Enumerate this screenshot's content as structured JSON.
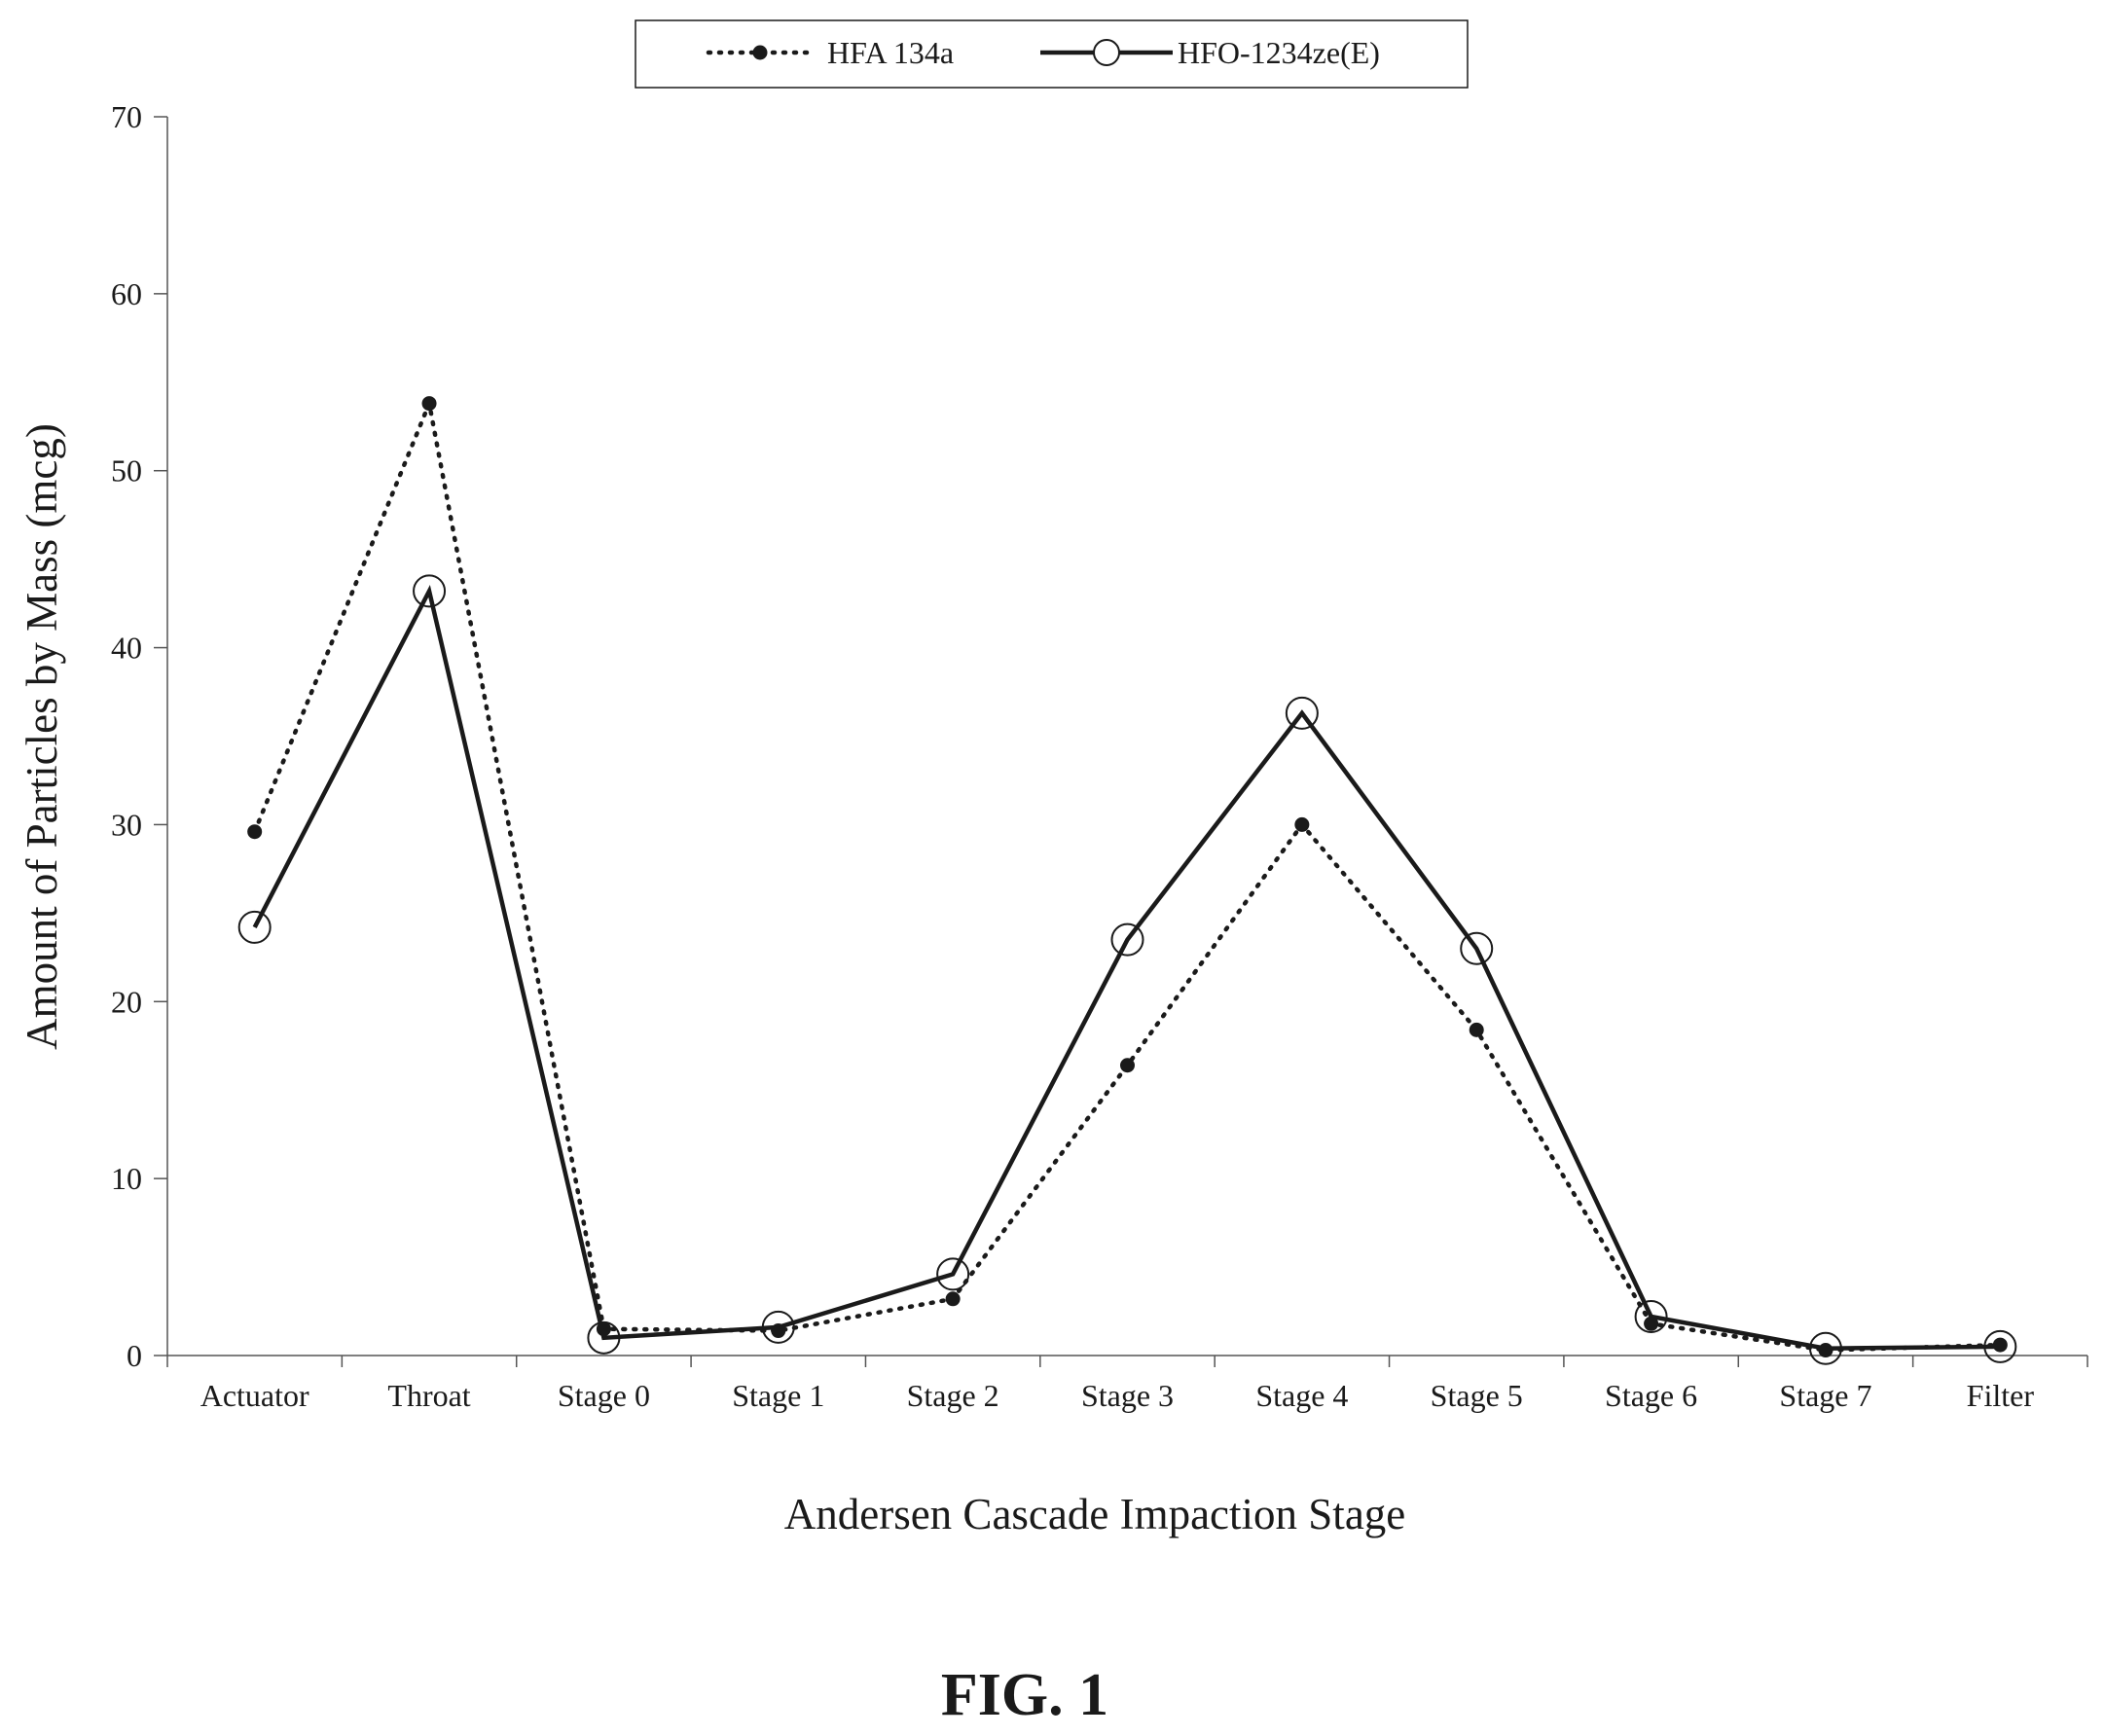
{
  "figure_caption": "FIG. 1",
  "chart_data": {
    "type": "line",
    "title": "",
    "xlabel": "Andersen Cascade Impaction Stage",
    "ylabel": "Amount of Particles by Mass (mcg)",
    "ylim": [
      0,
      70
    ],
    "yticks": [
      0,
      10,
      20,
      30,
      40,
      50,
      60,
      70
    ],
    "ytick_labels": [
      "0",
      "10",
      "20",
      "30",
      "40",
      "50",
      "60",
      "70"
    ],
    "grid": false,
    "legend_position": "top-center",
    "categories": [
      "Actuator",
      "Throat",
      "Stage 0",
      "Stage 1",
      "Stage 2",
      "Stage 3",
      "Stage 4",
      "Stage 5",
      "Stage 6",
      "Stage 7",
      "Filter"
    ],
    "series": [
      {
        "name": "HFA 134a",
        "line_style": "dotted",
        "marker": "filled-circle",
        "color": "#1a1a1a",
        "values": [
          29.6,
          53.8,
          1.5,
          1.4,
          3.2,
          16.4,
          30.0,
          18.4,
          1.8,
          0.3,
          0.6
        ]
      },
      {
        "name": "HFO-1234ze(E)",
        "line_style": "solid",
        "marker": "open-circle",
        "color": "#1a1a1a",
        "values": [
          24.2,
          43.2,
          1.0,
          1.6,
          4.6,
          23.5,
          36.3,
          23.0,
          2.2,
          0.4,
          0.5
        ]
      }
    ]
  }
}
